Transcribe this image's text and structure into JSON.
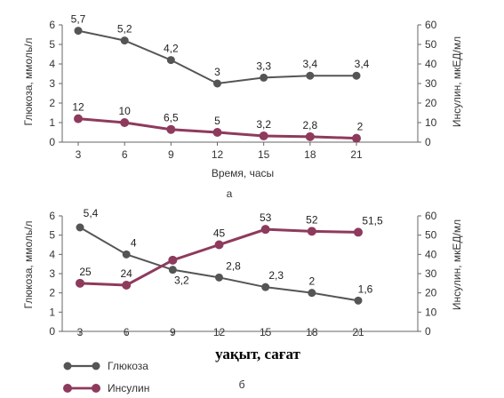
{
  "chart_data": [
    {
      "type": "line",
      "panel_label": "а",
      "x": [
        3,
        6,
        9,
        12,
        15,
        18,
        21
      ],
      "xlabel": "Время, часы",
      "ylabel_left": "Глюкоза, ммоль/л",
      "ylabel_right": "Инсулин, мкЕД/мл",
      "ylim_left": [
        0,
        6
      ],
      "ylim_right": [
        0,
        60
      ],
      "yticks_left": [
        "0",
        "1",
        "2",
        "3",
        "4",
        "5",
        "6"
      ],
      "yticks_right": [
        "0",
        "10",
        "20",
        "30",
        "40",
        "50",
        "60"
      ],
      "series": [
        {
          "name": "Глюкоза",
          "axis": "left",
          "color": "#555555",
          "values": [
            5.7,
            5.2,
            4.2,
            3,
            3.3,
            3.4,
            3.4
          ],
          "labels": [
            "5,7",
            "5,2",
            "4,2",
            "3",
            "3,3",
            "3,4",
            "3,4"
          ]
        },
        {
          "name": "Инсулин",
          "axis": "right",
          "color": "#8e3a5d",
          "values": [
            12,
            10,
            6.5,
            5,
            3.2,
            2.8,
            2
          ],
          "labels": [
            "12",
            "10",
            "6,5",
            "5",
            "3,2",
            "2,8",
            "2"
          ]
        }
      ]
    },
    {
      "type": "line",
      "panel_label": "б",
      "x": [
        3,
        6,
        9,
        12,
        15,
        18,
        21
      ],
      "xlabel": "уақыт, сағат",
      "ylabel_left": "Глюкоза, ммоль/л",
      "ylabel_right": "Инсулин, мкЕД/мл",
      "ylim_left": [
        0,
        6
      ],
      "ylim_right": [
        0,
        60
      ],
      "yticks_left": [
        "0",
        "1",
        "2",
        "3",
        "4",
        "5",
        "6"
      ],
      "yticks_right": [
        "0",
        "10",
        "20",
        "30",
        "40",
        "50",
        "60"
      ],
      "series": [
        {
          "name": "Глюкоза",
          "axis": "left",
          "color": "#555555",
          "values": [
            5.4,
            4,
            3.2,
            2.8,
            2.3,
            2,
            1.6
          ],
          "labels": [
            "5,4",
            "4",
            "3,2",
            "2,8",
            "2,3",
            "2",
            "1,6"
          ]
        },
        {
          "name": "Инсулин",
          "axis": "right",
          "color": "#8e3a5d",
          "values": [
            25,
            24,
            37,
            45,
            53,
            52,
            51.5
          ],
          "labels": [
            "25",
            "24",
            "",
            "45",
            "53",
            "52",
            "51,5"
          ]
        }
      ]
    }
  ],
  "legend": {
    "items": [
      {
        "label": "Глюкоза",
        "color": "#555555"
      },
      {
        "label": "Инсулин",
        "color": "#8e3a5d"
      }
    ]
  }
}
